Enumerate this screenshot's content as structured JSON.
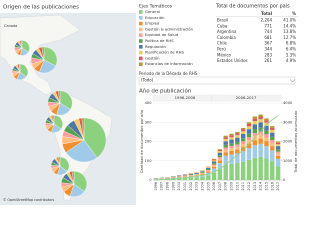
{
  "map": {
    "title": "Origen de las publicaciones",
    "label": "Canada",
    "credit": "© OpenStreetMap contributors",
    "pies": [
      {
        "values": [
          880,
          560,
          150,
          120,
          90,
          110,
          130,
          80,
          50,
          34
        ]
      },
      {
        "values": [
          250,
          180,
          60,
          50,
          60,
          40,
          50,
          30,
          30,
          21
        ]
      },
      {
        "values": [
          260,
          150,
          70,
          50,
          40,
          50,
          50,
          30,
          25,
          19
        ]
      },
      {
        "values": [
          230,
          140,
          60,
          50,
          40,
          40,
          50,
          30,
          25,
          16
        ]
      },
      {
        "values": [
          130,
          70,
          30,
          30,
          20,
          20,
          30,
          15,
          12,
          10
        ]
      },
      {
        "values": [
          120,
          70,
          30,
          25,
          20,
          20,
          25,
          15,
          10,
          9
        ]
      },
      {
        "values": [
          100,
          60,
          25,
          20,
          15,
          15,
          20,
          12,
          10,
          6
        ]
      },
      {
        "values": [
          90,
          50,
          20,
          20,
          20,
          15,
          20,
          12,
          8,
          6
        ]
      }
    ]
  },
  "legend_title": "Ejes Temáticos",
  "table": {
    "title": "Total de documentos por país",
    "header": [
      "Total",
      "%"
    ],
    "rows": [
      [
        "Brasil",
        "2,204",
        "41.0%"
      ],
      [
        "Cuba",
        "771",
        "14.4%"
      ],
      [
        "Argentina",
        "744",
        "13.8%"
      ],
      [
        "Colombia",
        "681",
        "12.7%"
      ],
      [
        "Chile",
        "367",
        "6.8%"
      ],
      [
        "Perú",
        "344",
        "6.4%"
      ],
      [
        "México",
        "283",
        "5.3%"
      ],
      [
        "Estados Unidos",
        "261",
        "4.9%"
      ]
    ]
  },
  "filter": {
    "label": "Periodo de la Década de RHS",
    "value": "(Todo)"
  },
  "chart_data": {
    "type": "stacked-bar",
    "title": "Año de publicación",
    "periods": [
      "1996-2006",
      "2006-2017"
    ],
    "ylabel": "Cantidad de documentos por año",
    "y2label": "Total de documentos acumulado",
    "categories": [
      "1996",
      "1997",
      "1998",
      "1999",
      "2000",
      "2001",
      "2002",
      "2003",
      "2004",
      "2005",
      "2006",
      "2007",
      "2008",
      "2009",
      "2010",
      "2011",
      "2012",
      "2013",
      "2014",
      "2015",
      "2016",
      "2017"
    ],
    "ylim": [
      0,
      400
    ],
    "yticks": [
      0,
      100,
      200,
      300,
      400
    ],
    "y2lim": [
      0,
      4000
    ],
    "y2ticks": [
      0,
      1000,
      2000,
      3000,
      4000
    ],
    "grid": true,
    "series": [
      {
        "name": "General",
        "color": "#8cd17d",
        "values": [
          4,
          4,
          5,
          7,
          9,
          10,
          12,
          14,
          17,
          24,
          38,
          56,
          80,
          84,
          88,
          95,
          105,
          115,
          120,
          112,
          98,
          70
        ]
      },
      {
        "name": "Educación",
        "color": "#a0cbe8",
        "values": [
          2,
          3,
          3,
          4,
          5,
          6,
          7,
          8,
          10,
          14,
          22,
          32,
          46,
          48,
          50,
          54,
          60,
          66,
          68,
          64,
          56,
          40
        ]
      },
      {
        "name": "Empleo",
        "color": "#f28e2b",
        "values": [
          1,
          1,
          2,
          2,
          2,
          3,
          3,
          3,
          4,
          6,
          9,
          13,
          18,
          19,
          20,
          22,
          24,
          26,
          27,
          26,
          22,
          16
        ]
      },
      {
        "name": "Gestión & administración",
        "color": "#ffbe7d",
        "values": [
          1,
          1,
          1,
          1,
          2,
          2,
          2,
          3,
          3,
          4,
          6,
          10,
          14,
          14,
          15,
          16,
          18,
          20,
          20,
          19,
          17,
          12
        ]
      },
      {
        "name": "Equidad de Salud",
        "color": "#ff9d9a",
        "values": [
          0,
          1,
          1,
          1,
          1,
          2,
          2,
          2,
          3,
          4,
          5,
          8,
          11,
          12,
          12,
          14,
          15,
          16,
          17,
          16,
          14,
          10
        ]
      },
      {
        "name": "Política de RHS",
        "color": "#59a14f",
        "values": [
          1,
          1,
          1,
          2,
          2,
          2,
          3,
          3,
          4,
          5,
          7,
          10,
          14,
          14,
          15,
          16,
          18,
          20,
          20,
          19,
          17,
          12
        ]
      },
      {
        "name": "Regulación",
        "color": "#4e79a7",
        "values": [
          1,
          1,
          1,
          2,
          2,
          3,
          3,
          4,
          4,
          6,
          9,
          13,
          18,
          19,
          20,
          22,
          24,
          26,
          27,
          26,
          22,
          16
        ]
      },
      {
        "name": "Planificación de RHS",
        "color": "#f1ce63",
        "values": [
          0,
          0,
          1,
          1,
          1,
          1,
          2,
          2,
          3,
          4,
          6,
          8,
          12,
          12,
          13,
          14,
          15,
          17,
          17,
          16,
          14,
          10
        ]
      },
      {
        "name": "Gestión",
        "color": "#e15759",
        "values": [
          0,
          0,
          0,
          0,
          1,
          1,
          1,
          1,
          1,
          2,
          4,
          6,
          9,
          10,
          10,
          11,
          12,
          13,
          14,
          13,
          11,
          8
        ]
      },
      {
        "name": "Estancias de información",
        "color": "#b6992d",
        "values": [
          0,
          0,
          0,
          0,
          0,
          0,
          0,
          0,
          1,
          1,
          4,
          4,
          8,
          8,
          7,
          6,
          9,
          11,
          10,
          9,
          9,
          6
        ]
      }
    ],
    "cumulative": {
      "color": "#8cd17d",
      "axis": "y2",
      "values": [
        10,
        22,
        37,
        57,
        82,
        112,
        147,
        187,
        237,
        307,
        417,
        577,
        807,
        1047,
        1297,
        1567,
        1867,
        2197,
        2537,
        2857,
        3137,
        3337
      ]
    }
  }
}
